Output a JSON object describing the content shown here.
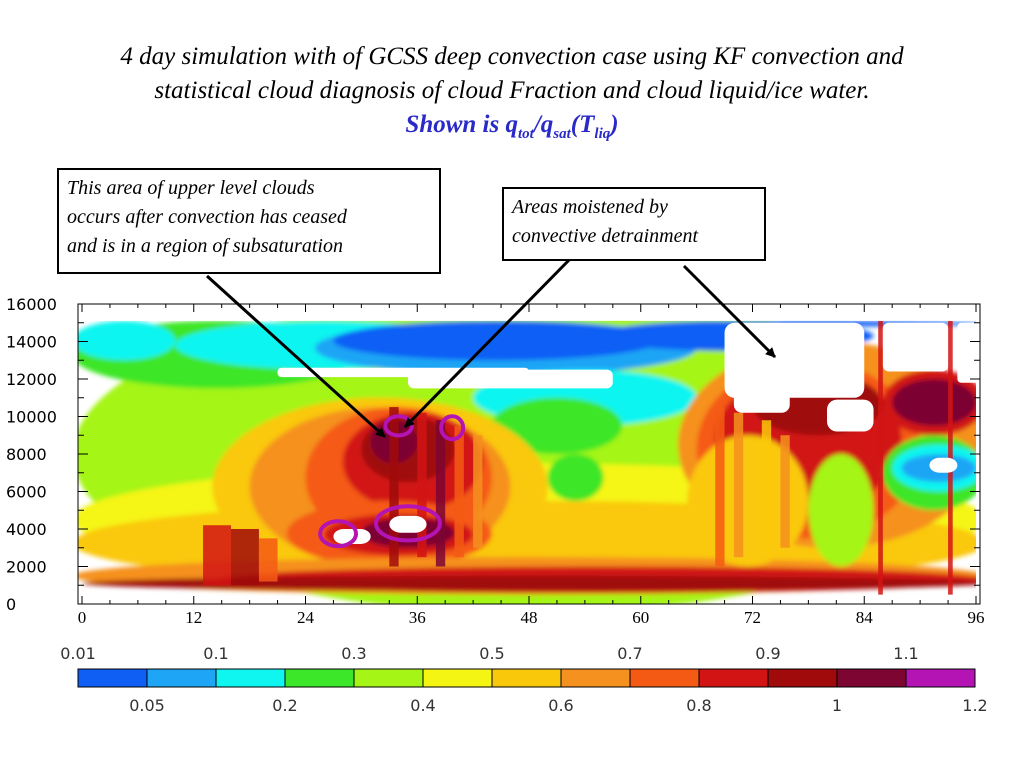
{
  "title": {
    "line1": "4 day simulation with of GCSS deep convection case using KF convection and",
    "line2": "statistical cloud diagnosis of cloud Fraction and cloud liquid/ice water.",
    "line3_prefix": "Shown is q",
    "line3_sub1": "tot",
    "line3_mid": "/q",
    "line3_sub2": "sat",
    "line3_mid2": "(T",
    "line3_sub3": "liq",
    "line3_suffix": ")"
  },
  "annotations": {
    "left_box": [
      "This area of upper level clouds",
      "occurs after convection has ceased",
      "and is in a region of subsaturation"
    ],
    "right_box": [
      "Areas moistened by",
      "convective detrainment"
    ]
  },
  "chart_data": {
    "type": "heatmap",
    "title": "",
    "xlabel": "",
    "ylabel": "",
    "x_range": [
      0,
      96
    ],
    "y_range": [
      0,
      16000
    ],
    "x_ticks": [
      "0",
      "12",
      "24",
      "36",
      "48",
      "60",
      "72",
      "84",
      "96"
    ],
    "y_ticks": [
      "16000",
      "14000",
      "12000",
      "10000",
      "8000",
      "6000",
      "4000",
      "2000",
      "0"
    ],
    "colorbar": {
      "levels": [
        0.01,
        0.05,
        0.1,
        0.2,
        0.3,
        0.4,
        0.5,
        0.6,
        0.7,
        0.8,
        0.9,
        1,
        1.1,
        1.2
      ],
      "top_labels": [
        "0.01",
        "0.1",
        "0.3",
        "0.5",
        "0.7",
        "0.9",
        "1.1"
      ],
      "bottom_labels": [
        "0.05",
        "0.2",
        "0.4",
        "0.6",
        "0.8",
        "1",
        "1.2"
      ],
      "colors": [
        "#0f5ff5",
        "#1ea5f5",
        "#0ff5f0",
        "#3ce628",
        "#a5f516",
        "#f5f514",
        "#fac80a",
        "#f5911e",
        "#f55a14",
        "#d21414",
        "#a00a0a",
        "#7d0532",
        "#b414b4"
      ]
    },
    "white_color": "#ffffff",
    "axis_color": "#000000"
  }
}
